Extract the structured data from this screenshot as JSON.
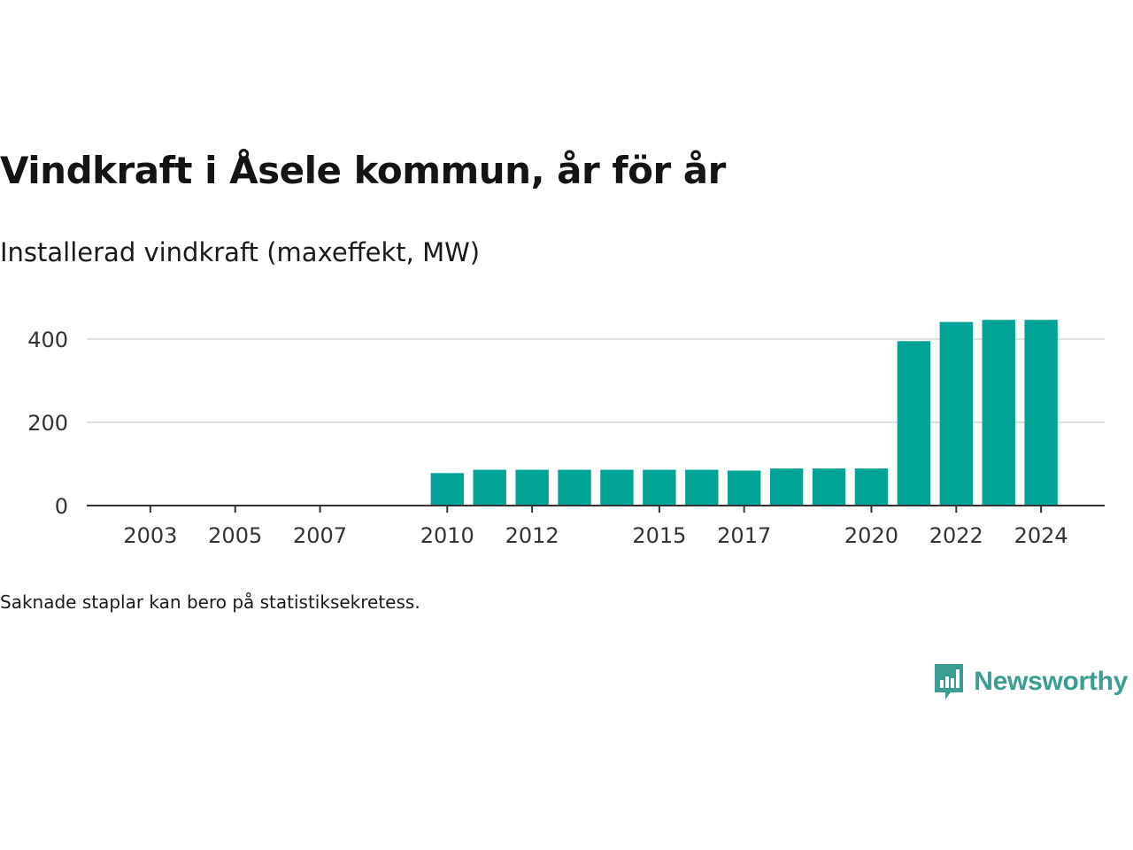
{
  "title": "Vindkraft i Åsele kommun, år för år",
  "subtitle": "Installerad vindkraft (maxeffekt, MW)",
  "note": "Saknade staplar kan bero på statistiksekretess.",
  "brand": {
    "name": "Newsworthy",
    "icon": "bar-chart-speech-bubble-icon",
    "color": "#3a9e93"
  },
  "chart_data": {
    "type": "bar",
    "title": "Vindkraft i Åsele kommun, år för år",
    "subtitle": "Installerad vindkraft (maxeffekt, MW)",
    "bar_color": "#00a396",
    "ylim": [
      0,
      470
    ],
    "yticks": [
      0,
      200,
      400
    ],
    "xlim": [
      2001.5,
      2025.5
    ],
    "xticks": [
      2003,
      2005,
      2007,
      2010,
      2012,
      2015,
      2017,
      2020,
      2022,
      2024
    ],
    "grid": true,
    "x": [
      2010,
      2011,
      2012,
      2013,
      2014,
      2015,
      2016,
      2017,
      2018,
      2019,
      2020,
      2021,
      2022,
      2023,
      2024
    ],
    "values": [
      78,
      86,
      86,
      86,
      86,
      86,
      86,
      84,
      89,
      89,
      89,
      395,
      441,
      446,
      446
    ]
  }
}
